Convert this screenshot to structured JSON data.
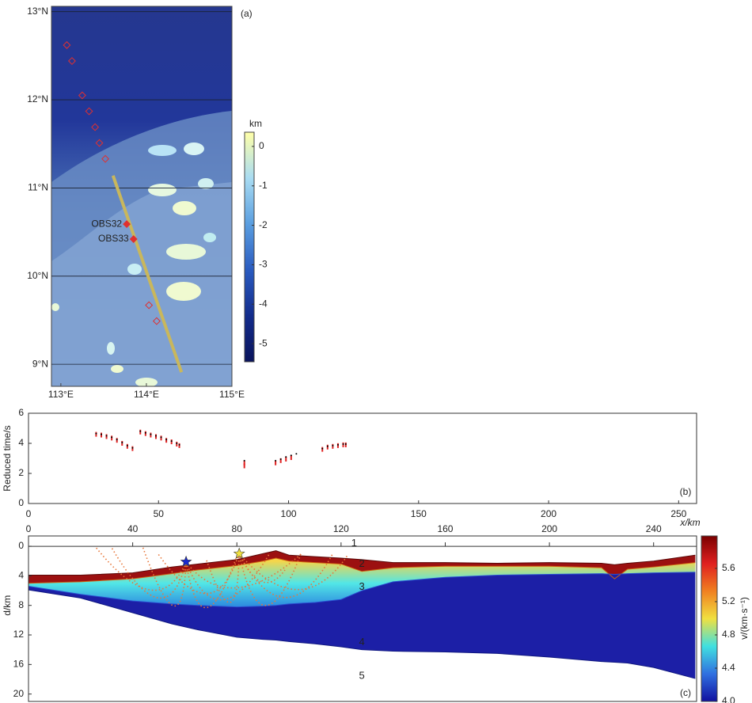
{
  "chart_data": [
    {
      "type": "map",
      "label": "(a)",
      "xlim": [
        112.89,
        115
      ],
      "ylim": [
        8.75,
        13.06
      ],
      "xticks": [
        {
          "value": 113,
          "label": "113°E"
        },
        {
          "value": 114,
          "label": "114°E"
        },
        {
          "value": 115,
          "label": "115°E"
        }
      ],
      "yticks": [
        {
          "value": 9,
          "label": "9°N"
        },
        {
          "value": 10,
          "label": "10°N"
        },
        {
          "value": 11,
          "label": "11°N"
        },
        {
          "value": 12,
          "label": "12°N"
        },
        {
          "value": 13,
          "label": "13°N"
        }
      ],
      "grid": true,
      "profile": {
        "color": "#c9b75c",
        "lon": [
          113.61,
          114.41
        ],
        "lat": [
          11.14,
          8.91
        ]
      },
      "stations": {
        "color": "#e03030",
        "names": [
          null,
          null,
          null,
          null,
          null,
          null,
          null,
          "OBS32",
          "OBS33",
          null,
          null
        ],
        "lon": [
          113.07,
          113.13,
          113.25,
          113.33,
          113.4,
          113.45,
          113.52,
          113.77,
          113.85,
          114.03,
          114.12
        ],
        "lat": [
          12.62,
          12.44,
          12.05,
          11.87,
          11.69,
          11.51,
          11.33,
          10.59,
          10.42,
          9.67,
          9.49
        ]
      },
      "colorbar": {
        "label": "km",
        "lim": [
          -5.46,
          0.36
        ],
        "ticks": [
          0,
          -1,
          -2,
          -3,
          -4,
          -5
        ],
        "colors": [
          "#ffffa8",
          "#a9dcf2",
          "#5a9ee0",
          "#2a5bc0",
          "#132c8c",
          "#0a145c"
        ]
      }
    },
    {
      "type": "scatter",
      "label": "(b)",
      "y_label": "Reduced time/s",
      "xlim": [
        0,
        256.9
      ],
      "ylim": [
        0,
        6
      ],
      "xticks": [
        0,
        50,
        100,
        150,
        200,
        250
      ],
      "yticks": [
        0,
        2,
        4,
        6
      ],
      "series": [
        {
          "color": "#e02020",
          "x": [
            26,
            28,
            30,
            32,
            34,
            36,
            38,
            40,
            43,
            45,
            47,
            49,
            51,
            53,
            55,
            57,
            58,
            83,
            83,
            95,
            97,
            99,
            101,
            113,
            115,
            117,
            119,
            121,
            122
          ],
          "values": [
            4.6,
            4.55,
            4.45,
            4.35,
            4.2,
            4.0,
            3.8,
            3.65,
            4.75,
            4.65,
            4.55,
            4.45,
            4.35,
            4.2,
            4.1,
            3.95,
            3.85,
            2.7,
            2.5,
            2.7,
            2.85,
            2.95,
            3.05,
            3.6,
            3.75,
            3.8,
            3.85,
            3.9,
            3.9
          ]
        },
        {
          "color": "#000000",
          "x": [
            26,
            28,
            30,
            32,
            34,
            36,
            38,
            40,
            43,
            45,
            47,
            49,
            51,
            53,
            55,
            57,
            58,
            83,
            95,
            97,
            99,
            101,
            103,
            113,
            115,
            117,
            119,
            121,
            122
          ],
          "values": [
            4.65,
            4.6,
            4.5,
            4.4,
            4.25,
            4.05,
            3.85,
            3.7,
            4.8,
            4.7,
            4.6,
            4.5,
            4.4,
            4.25,
            4.15,
            4.0,
            3.9,
            2.85,
            2.85,
            2.95,
            3.1,
            3.2,
            3.3,
            3.65,
            3.8,
            3.85,
            3.9,
            3.95,
            3.95
          ]
        }
      ]
    },
    {
      "type": "velocity_model",
      "label": "(c)",
      "x_label": "x/km",
      "y_label": "d/km",
      "xlim": [
        0,
        256.5
      ],
      "ylim": [
        -1.4,
        21
      ],
      "y_inverted": true,
      "xticks": [
        0,
        40,
        80,
        120,
        160,
        200,
        240
      ],
      "yticks": [
        0,
        4,
        8,
        12,
        16,
        20
      ],
      "layer_labels": [
        "1",
        "2",
        "3",
        "4",
        "5"
      ],
      "x": [
        0,
        20,
        40,
        55,
        65,
        80,
        90,
        95,
        100,
        110,
        120,
        128,
        140,
        160,
        180,
        200,
        220,
        225,
        230,
        240,
        256
      ],
      "interfaces": [
        {
          "color": "#5a0808",
          "values": [
            3.9,
            3.9,
            3.6,
            2.8,
            2.4,
            1.8,
            1.0,
            0.6,
            1.2,
            1.4,
            1.6,
            1.8,
            2.2,
            2.2,
            2.3,
            2.2,
            2.3,
            2.5,
            2.3,
            2.0,
            1.2
          ]
        },
        {
          "color": "#d06010",
          "values": [
            5.0,
            4.8,
            4.4,
            3.7,
            3.2,
            2.6,
            2.0,
            1.6,
            2.0,
            2.2,
            2.4,
            3.4,
            2.9,
            2.7,
            2.7,
            2.7,
            2.9,
            4.4,
            3.1,
            2.8,
            2.2
          ]
        },
        {
          "color": "#2a50d0",
          "values": [
            5.4,
            6.5,
            7.4,
            7.8,
            8.0,
            8.2,
            8.1,
            8.0,
            7.8,
            7.6,
            7.2,
            6.0,
            4.8,
            4.2,
            3.9,
            3.8,
            3.7,
            3.8,
            3.7,
            3.6,
            3.5
          ]
        },
        {
          "color": "#101880",
          "values": [
            5.9,
            7.0,
            9.0,
            10.5,
            11.3,
            12.3,
            12.6,
            12.7,
            12.9,
            13.2,
            13.6,
            14.0,
            14.2,
            14.3,
            14.5,
            15.0,
            15.6,
            15.7,
            15.8,
            16.4,
            17.9
          ]
        }
      ],
      "fills": [
        "#9c1010",
        [
          "#f5d54a",
          "#52e6e6",
          "#2f8fe0"
        ],
        "#1c1fa6"
      ],
      "stations": {
        "x": [
          60.5,
          80.9
        ],
        "depth": [
          2.1,
          1.0
        ],
        "colors": [
          "#1a2ad0",
          "#f0e040"
        ]
      },
      "colorbar": {
        "label": "v/(km·s⁻¹)",
        "lim": [
          4.0,
          5.99
        ],
        "ticks": [
          {
            "value": 4,
            "label": "4.0"
          },
          4.4,
          4.8,
          5.2,
          5.6
        ],
        "colors": [
          "#7a0000",
          "#e02020",
          "#f08020",
          "#f0e040",
          "#40e0e0",
          "#3070e0",
          "#1010a0"
        ]
      }
    }
  ]
}
